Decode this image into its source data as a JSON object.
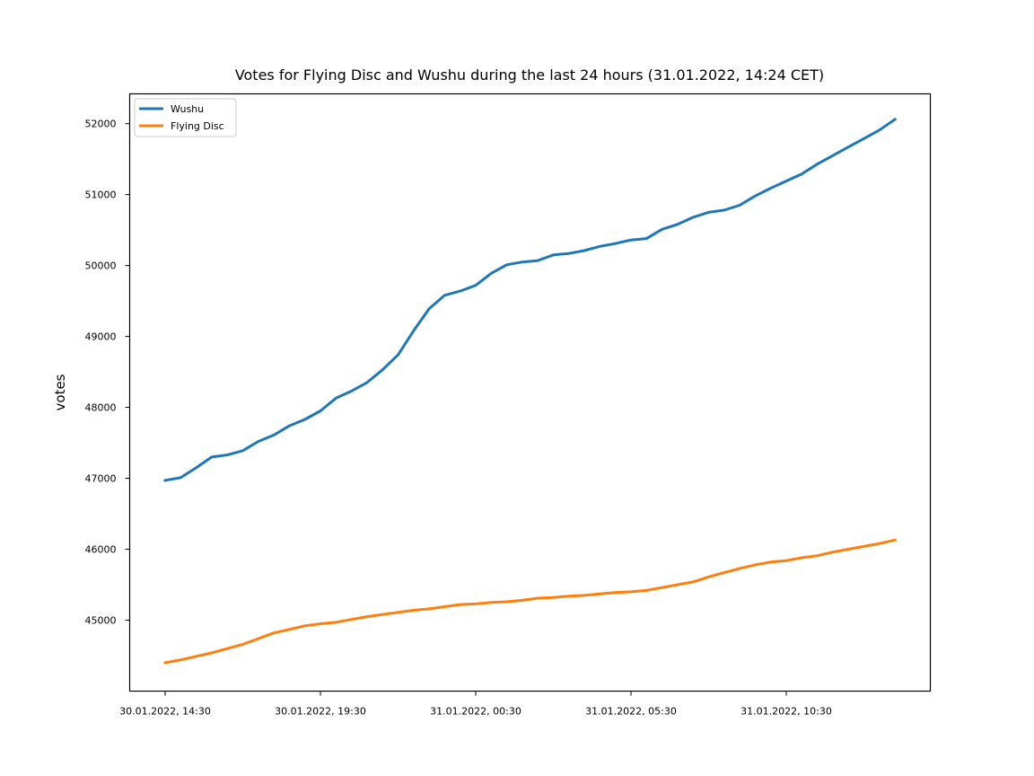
{
  "chart_data": {
    "type": "line",
    "title": "Votes for Flying Disc and Wushu during the last 24 hours (31.01.2022, 14:24 CET)",
    "xlabel": "",
    "ylabel": "votes",
    "x": [
      "30.01.2022, 14:30",
      "30.01.2022, 15:00",
      "30.01.2022, 15:30",
      "30.01.2022, 16:00",
      "30.01.2022, 16:30",
      "30.01.2022, 17:00",
      "30.01.2022, 17:30",
      "30.01.2022, 18:00",
      "30.01.2022, 18:30",
      "30.01.2022, 19:00",
      "30.01.2022, 19:30",
      "30.01.2022, 20:00",
      "30.01.2022, 20:30",
      "30.01.2022, 21:00",
      "30.01.2022, 21:30",
      "30.01.2022, 22:00",
      "30.01.2022, 22:30",
      "30.01.2022, 23:00",
      "30.01.2022, 23:30",
      "31.01.2022, 00:00",
      "31.01.2022, 00:30",
      "31.01.2022, 01:00",
      "31.01.2022, 01:30",
      "31.01.2022, 02:00",
      "31.01.2022, 02:30",
      "31.01.2022, 03:00",
      "31.01.2022, 03:30",
      "31.01.2022, 04:00",
      "31.01.2022, 04:30",
      "31.01.2022, 05:00",
      "31.01.2022, 05:30",
      "31.01.2022, 06:00",
      "31.01.2022, 06:30",
      "31.01.2022, 07:00",
      "31.01.2022, 07:30",
      "31.01.2022, 08:00",
      "31.01.2022, 08:30",
      "31.01.2022, 09:00",
      "31.01.2022, 09:30",
      "31.01.2022, 10:00",
      "31.01.2022, 10:30",
      "31.01.2022, 11:00",
      "31.01.2022, 11:30",
      "31.01.2022, 12:00",
      "31.01.2022, 12:30",
      "31.01.2022, 13:00",
      "31.01.2022, 13:30",
      "31.01.2022, 14:00"
    ],
    "x_ticks": [
      "30.01.2022, 14:30",
      "30.01.2022, 19:30",
      "31.01.2022, 00:30",
      "31.01.2022, 05:30",
      "31.01.2022, 10:30"
    ],
    "y_ticks": [
      45000,
      46000,
      47000,
      48000,
      49000,
      50000,
      51000,
      52000
    ],
    "ylim": [
      44000,
      52420
    ],
    "series": [
      {
        "name": "Wushu",
        "color": "#1f77b4",
        "values": [
          46970,
          47010,
          47150,
          47300,
          47330,
          47390,
          47520,
          47610,
          47740,
          47830,
          47950,
          48130,
          48230,
          48350,
          48530,
          48740,
          49080,
          49390,
          49580,
          49640,
          49720,
          49890,
          50010,
          50050,
          50070,
          50150,
          50170,
          50210,
          50270,
          50310,
          50360,
          50380,
          50510,
          50580,
          50680,
          50750,
          50780,
          50850,
          50980,
          51090,
          51190,
          51290,
          51430,
          51550,
          51670,
          51790,
          51910,
          52060
        ]
      },
      {
        "name": "Flying Disc",
        "color": "#ff7f0e",
        "values": [
          44400,
          44440,
          44490,
          44540,
          44600,
          44660,
          44740,
          44820,
          44870,
          44920,
          44950,
          44970,
          45010,
          45050,
          45080,
          45110,
          45140,
          45160,
          45190,
          45220,
          45230,
          45250,
          45260,
          45280,
          45310,
          45320,
          45340,
          45350,
          45370,
          45390,
          45400,
          45420,
          45460,
          45500,
          45540,
          45610,
          45670,
          45730,
          45780,
          45820,
          45840,
          45880,
          45910,
          45960,
          46000,
          46040,
          46080,
          46130
        ]
      }
    ],
    "legend": "top-left",
    "grid": false
  }
}
